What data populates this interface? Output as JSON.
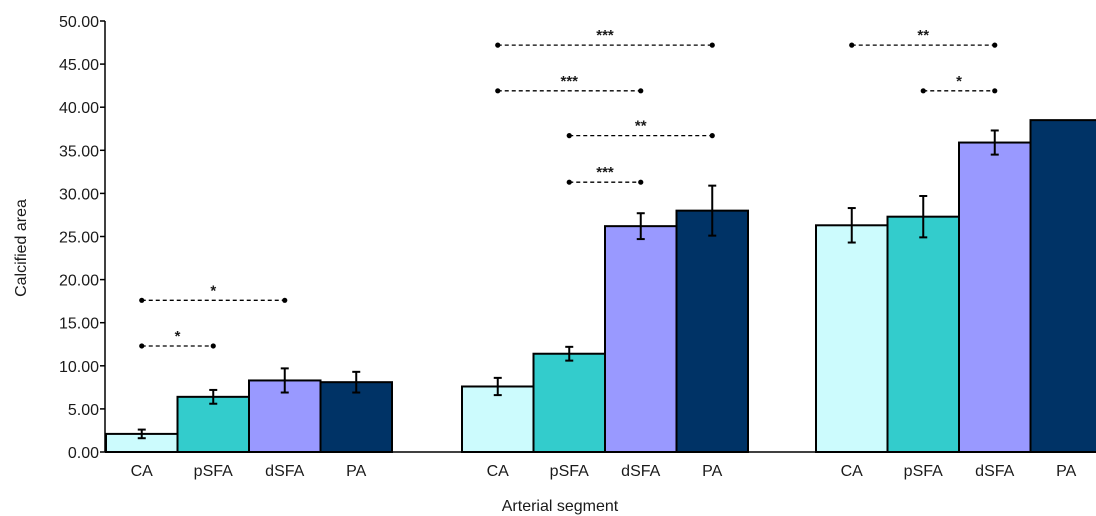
{
  "chart_data": {
    "type": "bar",
    "xlabel": "Arterial segment",
    "ylabel": "Calcified area",
    "ylim": [
      0,
      50
    ],
    "y_ticks": [
      "0.00",
      "5.00",
      "10.00",
      "15.00",
      "20.00",
      "25.00",
      "30.00",
      "35.00",
      "40.00",
      "45.00",
      "50.00"
    ],
    "grid": false,
    "segment_colors": {
      "CA": "#ccfbfd",
      "pSFA": "#33cccc",
      "dSFA": "#9999ff",
      "PA": "#003366"
    },
    "groups": [
      {
        "bars": [
          {
            "label": "CA",
            "value": 2.1,
            "error": 0.5
          },
          {
            "label": "pSFA",
            "value": 6.4,
            "error": 0.8
          },
          {
            "label": "dSFA",
            "value": 8.3,
            "error": 1.4
          },
          {
            "label": "PA",
            "value": 8.1,
            "error": 1.2
          }
        ],
        "significance": [
          {
            "from": "CA",
            "to": "pSFA",
            "y": 12.3,
            "label": "*"
          },
          {
            "from": "CA",
            "to": "dSFA",
            "y": 17.6,
            "label": "*"
          }
        ]
      },
      {
        "bars": [
          {
            "label": "CA",
            "value": 7.6,
            "error": 1.0
          },
          {
            "label": "pSFA",
            "value": 11.4,
            "error": 0.8
          },
          {
            "label": "dSFA",
            "value": 26.2,
            "error": 1.5
          },
          {
            "label": "PA",
            "value": 28.0,
            "error": 2.9
          }
        ],
        "significance": [
          {
            "from": "pSFA",
            "to": "dSFA",
            "y": 31.3,
            "label": "***"
          },
          {
            "from": "pSFA",
            "to": "PA",
            "y": 36.7,
            "label": "**"
          },
          {
            "from": "CA",
            "to": "dSFA",
            "y": 41.9,
            "label": "***"
          },
          {
            "from": "CA",
            "to": "PA",
            "y": 47.2,
            "label": "***"
          }
        ]
      },
      {
        "bars": [
          {
            "label": "CA",
            "value": 26.3,
            "error": 2.0
          },
          {
            "label": "pSFA",
            "value": 27.3,
            "error": 2.4
          },
          {
            "label": "dSFA",
            "value": 35.9,
            "error": 1.4
          },
          {
            "label": "PA",
            "value": 38.5,
            "error": null
          }
        ],
        "significance": [
          {
            "from": "pSFA",
            "to": "dSFA",
            "y": 41.9,
            "label": "*"
          },
          {
            "from": "CA",
            "to": "dSFA",
            "y": 47.2,
            "label": "**"
          }
        ]
      }
    ]
  }
}
